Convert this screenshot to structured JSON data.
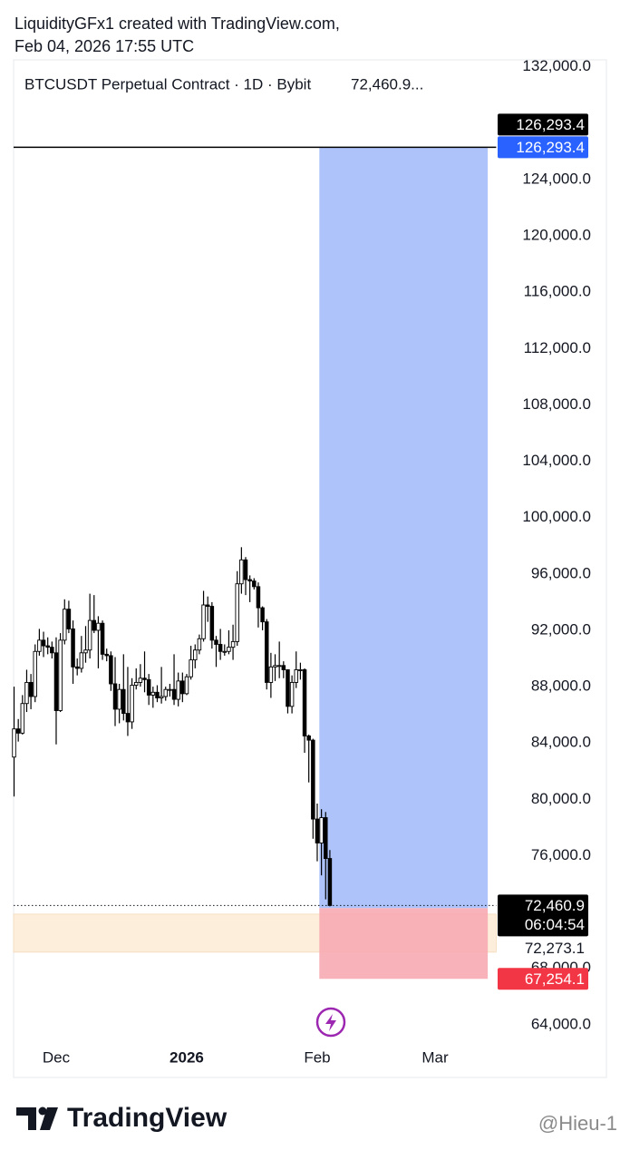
{
  "header": {
    "line1": "LiquidityGFx1 created with TradingView.com,",
    "line2": "Feb 04, 2026 17:55 UTC"
  },
  "chart_data": {
    "type": "candlestick",
    "symbol": "BTCUSDT Perpetual Contract · 1D · Bybit",
    "symbol_price": "72,460.9...",
    "categories": [
      null,
      null,
      null,
      null,
      null,
      null,
      null,
      null,
      null,
      null,
      "Dec",
      null,
      null,
      null,
      null,
      null,
      null,
      null,
      null,
      null,
      null,
      null,
      null,
      null,
      null,
      null,
      null,
      null,
      null,
      null,
      null,
      null,
      null,
      null,
      null,
      null,
      null,
      null,
      null,
      null,
      null,
      "2026",
      null,
      null,
      null,
      null,
      null,
      null,
      null,
      null,
      null,
      null,
      null,
      null,
      null,
      null,
      null,
      null,
      null,
      null,
      null,
      null,
      null,
      null,
      null,
      null,
      null,
      null,
      null,
      null,
      null,
      null,
      "Feb",
      null,
      null,
      null,
      null,
      null,
      null,
      null,
      null,
      null,
      null,
      null,
      null,
      null,
      null,
      null,
      null,
      null,
      null,
      null,
      null,
      null,
      null,
      null,
      null,
      null,
      null,
      null,
      "Mar",
      null,
      null,
      null,
      null,
      null,
      null,
      null,
      null,
      null,
      null,
      null,
      null,
      null,
      null
    ],
    "open": [
      83000,
      85000,
      84700,
      86800,
      88300,
      87300,
      90500,
      91300,
      90900,
      90800,
      90400,
      86300,
      91300,
      93500,
      92100,
      89400,
      89300,
      90400,
      90600,
      92700,
      92000,
      92500,
      90300,
      90200,
      88200,
      86400,
      87800,
      86100,
      85500,
      88100,
      88300,
      88600,
      88500,
      87400,
      87600,
      87200,
      87300,
      87800,
      87800,
      87100,
      88400,
      87500,
      88700,
      89900,
      90600,
      91400,
      93800,
      93700,
      91300,
      91000,
      90500,
      90500,
      90800,
      91200,
      95300,
      97000,
      95600,
      95500,
      95100,
      93600,
      92600,
      88300,
      89400,
      89500,
      89500,
      89200,
      86600,
      88300,
      89200,
      89200,
      84500,
      84200,
      78600,
      76900,
      78700,
      75800,
      null,
      null,
      null,
      null,
      null,
      null,
      null,
      null,
      null,
      null,
      null,
      null,
      null,
      null,
      null,
      null,
      null,
      null,
      null,
      null,
      null,
      null,
      null,
      null,
      null,
      null,
      null,
      null,
      null,
      null,
      null,
      null,
      null,
      null,
      null,
      null,
      null,
      null,
      null
    ],
    "high": [
      88000,
      85700,
      87400,
      89200,
      88900,
      91000,
      92100,
      91900,
      91500,
      91200,
      91500,
      91800,
      94200,
      94100,
      92700,
      90000,
      91600,
      92300,
      94600,
      94500,
      93000,
      92700,
      90700,
      90500,
      90100,
      88200,
      90300,
      89400,
      88600,
      89300,
      89600,
      90500,
      88900,
      88000,
      88100,
      89400,
      88000,
      88200,
      90300,
      89000,
      89000,
      88900,
      90900,
      91000,
      91700,
      94800,
      94400,
      94000,
      91600,
      92100,
      91000,
      92000,
      92400,
      96200,
      97900,
      97200,
      95900,
      95700,
      95400,
      93700,
      92800,
      90400,
      90300,
      91200,
      89800,
      89200,
      88800,
      90500,
      89700,
      89300,
      84600,
      84300,
      79700,
      79300,
      79100,
      76400,
      null,
      null,
      null,
      null,
      null,
      null,
      null,
      null,
      null,
      null,
      null,
      null,
      null,
      null,
      null,
      null,
      null,
      null,
      null,
      null,
      null,
      null,
      null,
      null,
      null,
      null,
      null,
      null,
      null,
      null,
      null,
      null,
      null,
      null,
      null,
      null,
      null,
      null,
      null
    ],
    "low": [
      80200,
      84100,
      84600,
      86200,
      86400,
      86900,
      90200,
      90100,
      90300,
      90000,
      83900,
      86200,
      91000,
      91800,
      88200,
      88800,
      89000,
      89700,
      90000,
      91800,
      89300,
      89900,
      89800,
      87700,
      85200,
      85400,
      85600,
      84500,
      85000,
      87800,
      88000,
      87600,
      86700,
      86500,
      86900,
      86800,
      87000,
      87300,
      86700,
      86600,
      86900,
      87400,
      88500,
      89300,
      90300,
      91200,
      92600,
      90700,
      89400,
      89900,
      90200,
      90300,
      89900,
      90900,
      94600,
      94500,
      94000,
      94900,
      92200,
      92000,
      87800,
      87200,
      88400,
      88600,
      88600,
      86100,
      86100,
      87900,
      88500,
      83300,
      81200,
      77200,
      75600,
      74600,
      72900,
      72400,
      null,
      null,
      null,
      null,
      null,
      null,
      null,
      null,
      null,
      null,
      null,
      null,
      null,
      null,
      null,
      null,
      null,
      null,
      null,
      null,
      null,
      null,
      null,
      null,
      null,
      null,
      null,
      null,
      null,
      null,
      null,
      null,
      null,
      null,
      null,
      null,
      null,
      null,
      null
    ],
    "close": [
      85000,
      84700,
      86800,
      88300,
      87300,
      90500,
      91300,
      90900,
      90800,
      90400,
      86300,
      91300,
      93500,
      92100,
      89400,
      89300,
      90400,
      90600,
      92700,
      92000,
      92500,
      90300,
      90200,
      88200,
      86400,
      87800,
      86100,
      85500,
      88100,
      88300,
      88600,
      88500,
      87400,
      87600,
      87200,
      87300,
      87800,
      87800,
      87100,
      88400,
      87500,
      88700,
      89900,
      90600,
      91400,
      93800,
      93700,
      91300,
      91000,
      90500,
      90500,
      90800,
      91200,
      95300,
      97000,
      95600,
      95500,
      95100,
      93600,
      92600,
      88300,
      89400,
      89500,
      89500,
      89200,
      86600,
      88300,
      89200,
      89200,
      84500,
      84200,
      78600,
      76900,
      78700,
      75800,
      72460.9,
      null,
      null,
      null,
      null,
      null,
      null,
      null,
      null,
      null,
      null,
      null,
      null,
      null,
      null,
      null,
      null,
      null,
      null,
      null,
      null,
      null,
      null,
      null,
      null,
      null,
      null,
      null,
      null,
      null,
      null,
      null,
      null,
      null,
      null,
      null,
      null,
      null,
      null,
      null
    ],
    "up_color": "#ffffff",
    "down_color": "#000000",
    "wick_color": "#000000",
    "ylim": [
      62700,
      132500
    ],
    "yticks": [
      {
        "value": 132000,
        "label": "132,000.0"
      },
      {
        "value": 124000,
        "label": "124,000.0"
      },
      {
        "value": 120000,
        "label": "120,000.0"
      },
      {
        "value": 116000,
        "label": "116,000.0"
      },
      {
        "value": 112000,
        "label": "112,000.0"
      },
      {
        "value": 108000,
        "label": "108,000.0"
      },
      {
        "value": 104000,
        "label": "104,000.0"
      },
      {
        "value": 100000,
        "label": "100,000.0"
      },
      {
        "value": 96000,
        "label": "96,000.0"
      },
      {
        "value": 92000,
        "label": "92,000.0"
      },
      {
        "value": 88000,
        "label": "88,000.0"
      },
      {
        "value": 84000,
        "label": "84,000.0"
      },
      {
        "value": 80000,
        "label": "80,000.0"
      },
      {
        "value": 76000,
        "label": "76,000.0"
      },
      {
        "value": 68000,
        "label": "68,000.0"
      },
      {
        "value": 64000,
        "label": "64,000.0"
      }
    ],
    "grid": false,
    "hline": {
      "value": 126293.4,
      "label": "126,293.4",
      "color": "#000000"
    },
    "zone": {
      "values": [
        69150,
        71850
      ],
      "color": "#fdeedb"
    },
    "position": {
      "x_range": [
        73,
        112
      ],
      "target": {
        "value": 126293.4,
        "label": "126,293.4"
      },
      "entry": {
        "value": 72273.1,
        "label": "72,273.1"
      },
      "stop": {
        "value": 67254.1,
        "label": "67,254.1"
      },
      "profit_color": "#adc3fa",
      "loss_color": "#f7aab3",
      "target_badge_color": "#2962ff",
      "stop_badge_color": "#f23645"
    },
    "price_line": {
      "value": 72460.9,
      "label": "72,460.9",
      "countdown": "06:04:54"
    }
  },
  "footer": {
    "brand": "TradingView",
    "watermark": "@Hieu-1"
  }
}
